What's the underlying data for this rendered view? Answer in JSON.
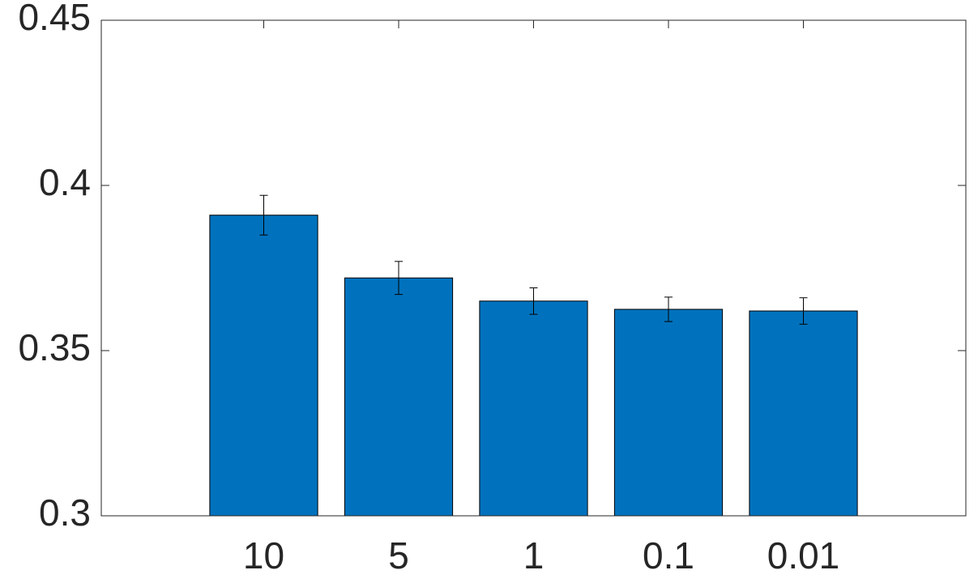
{
  "chart_data": {
    "type": "bar",
    "categories": [
      "10",
      "5",
      "1",
      "0.1",
      "0.01"
    ],
    "values": [
      0.391,
      0.372,
      0.365,
      0.3625,
      0.362
    ],
    "errors": [
      0.006,
      0.005,
      0.004,
      0.0037,
      0.004
    ],
    "color": "#0072bd",
    "ylim": [
      0.3,
      0.45
    ],
    "yticks": [
      0.3,
      0.35,
      0.4,
      0.45
    ],
    "grid": false
  }
}
